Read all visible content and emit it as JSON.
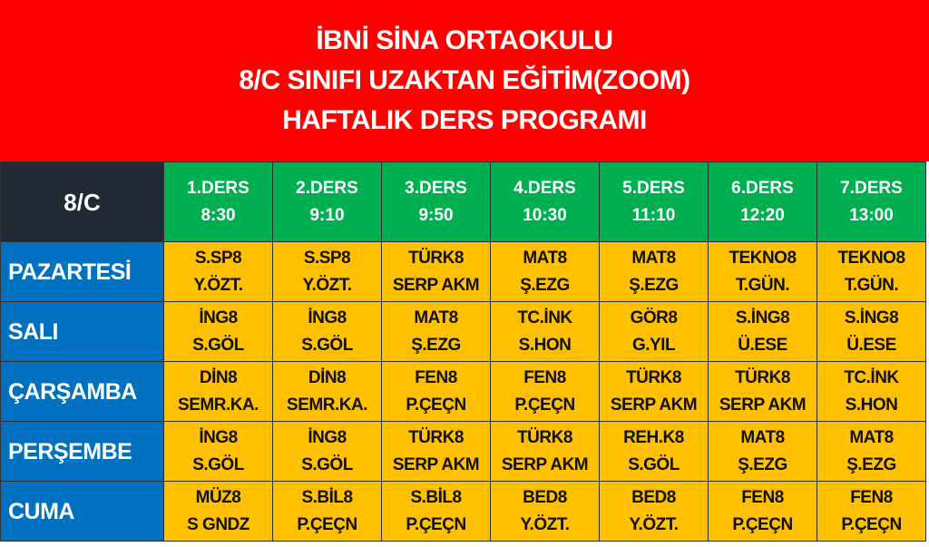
{
  "title": [
    "İBNİ SİNA ORTAOKULU",
    "8/C SINIFI UZAKTAN EĞİTİM(ZOOM)",
    "HAFTALIK DERS PROGRAMI"
  ],
  "corner": "8/C",
  "periods": [
    [
      "1.DERS",
      "8:30"
    ],
    [
      "2.DERS",
      "9:10"
    ],
    [
      "3.DERS",
      "9:50"
    ],
    [
      "4.DERS",
      "10:30"
    ],
    [
      "5.DERS",
      "11:10"
    ],
    [
      "6.DERS",
      "12:20"
    ],
    [
      "7.DERS",
      "13:00"
    ]
  ],
  "days": [
    {
      "name": "PAZARTESİ",
      "cells": [
        [
          "S.SP8",
          "Y.ÖZT."
        ],
        [
          "S.SP8",
          "Y.ÖZT."
        ],
        [
          "TÜRK8",
          "SERP AKM"
        ],
        [
          "MAT8",
          "Ş.EZG"
        ],
        [
          "MAT8",
          "Ş.EZG"
        ],
        [
          "TEKNO8",
          "T.GÜN."
        ],
        [
          "TEKNO8",
          "T.GÜN."
        ]
      ]
    },
    {
      "name": "SALI",
      "cells": [
        [
          "İNG8",
          "S.GÖL"
        ],
        [
          "İNG8",
          "S.GÖL"
        ],
        [
          "MAT8",
          "Ş.EZG"
        ],
        [
          "TC.İNK",
          "S.HON"
        ],
        [
          "GÖR8",
          "G.YIL"
        ],
        [
          "S.İNG8",
          "Ü.ESE"
        ],
        [
          "S.İNG8",
          "Ü.ESE"
        ]
      ]
    },
    {
      "name": "ÇARŞAMBA",
      "cells": [
        [
          "DİN8",
          "SEMR.KA."
        ],
        [
          "DİN8",
          "SEMR.KA."
        ],
        [
          "FEN8",
          "P.ÇEÇN"
        ],
        [
          "FEN8",
          "P.ÇEÇN"
        ],
        [
          "TÜRK8",
          "SERP AKM"
        ],
        [
          "TÜRK8",
          "SERP AKM"
        ],
        [
          "TC.İNK",
          "S.HON"
        ]
      ]
    },
    {
      "name": "PERŞEMBE",
      "cells": [
        [
          "İNG8",
          "S.GÖL"
        ],
        [
          "İNG8",
          "S.GÖL"
        ],
        [
          "TÜRK8",
          "SERP AKM"
        ],
        [
          "TÜRK8",
          "SERP AKM"
        ],
        [
          "REH.K8",
          "S.GÖL"
        ],
        [
          "MAT8",
          "Ş.EZG"
        ],
        [
          "MAT8",
          "Ş.EZG"
        ]
      ]
    },
    {
      "name": "CUMA",
      "cells": [
        [
          "MÜZ8",
          "S GNDZ"
        ],
        [
          "S.BİL8",
          "P.ÇEÇN"
        ],
        [
          "S.BİL8",
          "P.ÇEÇN"
        ],
        [
          "BED8",
          "Y.ÖZT."
        ],
        [
          "BED8",
          "Y.ÖZT."
        ],
        [
          "FEN8",
          "P.ÇEÇN"
        ],
        [
          "FEN8",
          "P.ÇEÇN"
        ]
      ]
    }
  ],
  "colors": {
    "title_bg": "#ff0000",
    "corner_bg": "#222a35",
    "header_bg": "#00b050",
    "day_bg": "#0070c0",
    "cell_bg": "#ffc000"
  }
}
